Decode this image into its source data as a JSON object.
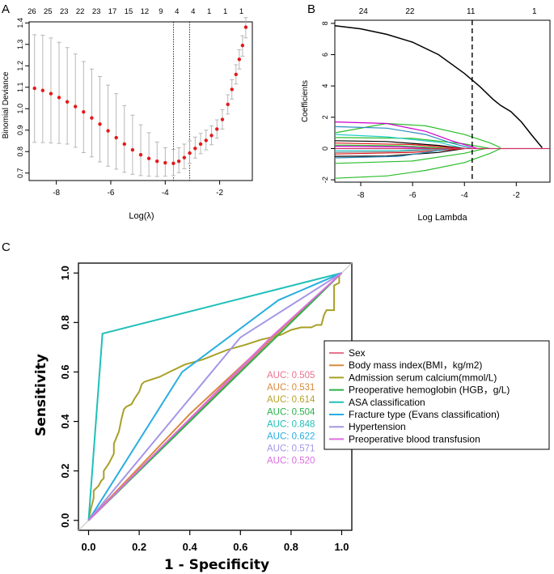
{
  "panel_labels": {
    "a": "A",
    "b": "B",
    "c": "C"
  },
  "chart_data": [
    {
      "id": "A",
      "type": "scatter",
      "title": "",
      "xlabel": "Log(λ)",
      "ylabel": "Binomial Deviance",
      "xlim": [
        -9.0,
        -0.8
      ],
      "ylim": [
        0.665,
        1.405
      ],
      "xticks": [
        "-8",
        "-6",
        "-4",
        "-2"
      ],
      "yticks": [
        "0.7",
        "0.8",
        "0.9",
        "1.0",
        "1.1",
        "1.2",
        "1.3",
        "1.4"
      ],
      "top_axis_labels": [
        "26",
        "25",
        "23",
        "22",
        "23",
        "17",
        "15",
        "12",
        "9",
        "4",
        "4",
        "1",
        "1",
        "1"
      ],
      "vlines": [
        -3.7,
        -3.1
      ],
      "point_color": "#e31a1c",
      "errorbar_color": "#b0b0b0",
      "series": [
        {
          "name": "Binomial Deviance",
          "x": [
            -8.8,
            -8.5,
            -8.2,
            -7.9,
            -7.6,
            -7.3,
            -7.0,
            -6.7,
            -6.4,
            -6.1,
            -5.8,
            -5.5,
            -5.2,
            -4.9,
            -4.6,
            -4.3,
            -4.0,
            -3.7,
            -3.5,
            -3.3,
            -3.1,
            -2.9,
            -2.7,
            -2.5,
            -2.3,
            -2.1,
            -1.9,
            -1.7,
            -1.55,
            -1.4,
            -1.28,
            -1.16,
            -1.04
          ],
          "y": [
            1.095,
            1.085,
            1.07,
            1.052,
            1.032,
            1.01,
            0.985,
            0.957,
            0.928,
            0.897,
            0.865,
            0.835,
            0.808,
            0.785,
            0.768,
            0.755,
            0.748,
            0.745,
            0.755,
            0.772,
            0.793,
            0.815,
            0.835,
            0.852,
            0.875,
            0.905,
            0.95,
            1.02,
            1.09,
            1.16,
            1.23,
            1.295,
            1.38
          ],
          "lower": [
            0.843,
            0.842,
            0.84,
            0.838,
            0.835,
            0.82,
            0.795,
            0.775,
            0.752,
            0.732,
            0.718,
            0.703,
            0.694,
            0.688,
            0.685,
            0.684,
            0.685,
            0.688,
            0.702,
            0.72,
            0.745,
            0.77,
            0.79,
            0.808,
            0.832,
            0.862,
            0.905,
            0.975,
            1.045,
            1.115,
            1.185,
            1.245,
            1.33
          ],
          "upper": [
            1.345,
            1.343,
            1.33,
            1.31,
            1.285,
            1.255,
            1.22,
            1.185,
            1.15,
            1.11,
            1.07,
            1.015,
            0.97,
            0.925,
            0.888,
            0.845,
            0.818,
            0.81,
            0.818,
            0.835,
            0.85,
            0.868,
            0.885,
            0.9,
            0.92,
            0.948,
            0.995,
            1.065,
            1.135,
            1.205,
            1.275,
            1.34,
            1.425
          ]
        }
      ]
    },
    {
      "id": "B",
      "type": "line",
      "title": "",
      "xlabel": "Log Lambda",
      "ylabel": "Coefficients",
      "xlim": [
        -9.0,
        -0.7
      ],
      "ylim": [
        -2.15,
        8.2
      ],
      "xticks": [
        "-8",
        "-6",
        "-4",
        "-2"
      ],
      "yticks": [
        "-2",
        "0",
        "2",
        "4",
        "6",
        "8"
      ],
      "top_axis_labels": [
        "24",
        "22",
        "11",
        "1"
      ],
      "vline": -3.7,
      "series": [
        {
          "name": "black-1",
          "color": "#000000",
          "x": [
            -9.0,
            -8.0,
            -7.0,
            -6.0,
            -5.0,
            -4.0,
            -3.4,
            -2.9,
            -2.6,
            -2.2,
            -1.8,
            -1.4,
            -1.0
          ],
          "y": [
            7.85,
            7.65,
            7.3,
            6.8,
            6.0,
            4.8,
            3.95,
            3.15,
            2.75,
            2.35,
            1.7,
            0.85,
            0.05
          ]
        },
        {
          "name": "green-up",
          "color": "#2bbd2b",
          "x": [
            -9.0,
            -7.0,
            -5.5,
            -4.0,
            -3.0,
            -2.6
          ],
          "y": [
            1.0,
            1.6,
            1.45,
            0.9,
            0.35,
            0.05
          ]
        },
        {
          "name": "green-down",
          "color": "#2bbd2b",
          "x": [
            -9.0,
            -7.0,
            -5.5,
            -4.0,
            -3.0,
            -2.6
          ],
          "y": [
            -1.9,
            -1.75,
            -1.4,
            -0.9,
            -0.3,
            0.0
          ]
        },
        {
          "name": "green-up2",
          "color": "#2bbd2b",
          "x": [
            -9.0,
            -6.0,
            -4.0,
            -3.0
          ],
          "y": [
            0.7,
            0.65,
            0.3,
            0.0
          ]
        },
        {
          "name": "green-low2",
          "color": "#2bbd2b",
          "x": [
            -9.0,
            -6.0,
            -4.0,
            -3.2
          ],
          "y": [
            -0.95,
            -0.8,
            -0.3,
            0.0
          ]
        },
        {
          "name": "magenta-1",
          "color": "#cc00cc",
          "x": [
            -9.0,
            -7.0,
            -5.5,
            -4.5,
            -3.7,
            -3.5
          ],
          "y": [
            1.7,
            1.6,
            1.1,
            0.5,
            0.1,
            0.0
          ]
        },
        {
          "name": "blue-1",
          "color": "#2b8cbe",
          "x": [
            -9.0,
            -7.0,
            -5.5,
            -4.5,
            -3.7
          ],
          "y": [
            1.4,
            1.3,
            0.9,
            0.35,
            0.0
          ]
        },
        {
          "name": "cyan-1",
          "color": "#22cccc",
          "x": [
            -9.0,
            -7.0,
            -5.0,
            -4.0
          ],
          "y": [
            0.9,
            0.75,
            0.4,
            0.0
          ]
        },
        {
          "name": "black-2",
          "color": "#000000",
          "x": [
            -9.0,
            -7.0,
            -5.0,
            -4.0
          ],
          "y": [
            0.5,
            0.45,
            0.2,
            0.0
          ]
        },
        {
          "name": "black-3",
          "color": "#000000",
          "x": [
            -9.0,
            -7.0,
            -5.0,
            -4.0
          ],
          "y": [
            -0.5,
            -0.48,
            -0.25,
            0.0
          ]
        },
        {
          "name": "red-1",
          "color": "#e31a1c",
          "x": [
            -9.0,
            -6.0,
            -4.0
          ],
          "y": [
            0.35,
            0.25,
            0.0
          ]
        },
        {
          "name": "red-2",
          "color": "#e31a1c",
          "x": [
            -9.0,
            -6.0,
            -4.0
          ],
          "y": [
            -0.35,
            -0.25,
            0.0
          ]
        },
        {
          "name": "blue-2",
          "color": "#2b8cbe",
          "x": [
            -9.0,
            -6.5,
            -4.5
          ],
          "y": [
            -0.6,
            -0.5,
            0.0
          ]
        },
        {
          "name": "cyan-2",
          "color": "#22cccc",
          "x": [
            -9.0,
            -6.5,
            -4.5
          ],
          "y": [
            -0.15,
            -0.12,
            0.0
          ]
        },
        {
          "name": "magenta-2",
          "color": "#cc00cc",
          "x": [
            -9.0,
            -6.5,
            -4.5
          ],
          "y": [
            0.15,
            0.1,
            0.0
          ]
        },
        {
          "name": "grey-1",
          "color": "#808080",
          "x": [
            -9.0,
            -6.5,
            -4.5
          ],
          "y": [
            -0.25,
            -0.2,
            0.0
          ]
        },
        {
          "name": "green-3",
          "color": "#2bbd2b",
          "x": [
            -9.0,
            -6.5,
            -4.5
          ],
          "y": [
            0.22,
            0.18,
            0.0
          ]
        },
        {
          "name": "zero",
          "color": "#cc3366",
          "x": [
            -9.0,
            -0.7
          ],
          "y": [
            0.0,
            0.0
          ]
        }
      ]
    },
    {
      "id": "C",
      "type": "line",
      "title": "",
      "xlabel": "1 - Specificity",
      "ylabel": "Sensitivity",
      "xlim": [
        -0.04,
        1.04
      ],
      "ylim": [
        -0.04,
        1.04
      ],
      "xticks": [
        "0.0",
        "0.2",
        "0.4",
        "0.6",
        "0.8",
        "1.0"
      ],
      "yticks": [
        "0.0",
        "0.2",
        "0.4",
        "0.6",
        "0.8",
        "1.0"
      ],
      "legend_position": "right",
      "auc_labels": [
        "AUC: 0.505",
        "AUC: 0.531",
        "AUC: 0.614",
        "AUC: 0.504",
        "AUC: 0.848",
        "AUC: 0.622",
        "AUC: 0.571",
        "AUC: 0.520"
      ],
      "auc_colors": [
        "#e8738f",
        "#d88a3c",
        "#b5a128",
        "#2bb04a",
        "#1fc0b8",
        "#29aee0",
        "#a596e6",
        "#dc6ee0"
      ],
      "series": [
        {
          "name": "Sex",
          "color": "#e8738f",
          "x": [
            0.0,
            0.77,
            1.0
          ],
          "y": [
            0.0,
            0.78,
            1.0
          ]
        },
        {
          "name": "Body mass index(BMI，kg/m2)",
          "color": "#d88a3c",
          "x": [
            0.0,
            0.4,
            1.0
          ],
          "y": [
            0.0,
            0.43,
            1.0
          ]
        },
        {
          "name": "Admission serum calcium(mmol/L)",
          "color": "#a8a028",
          "x": [
            0.0,
            0.01,
            0.02,
            0.02,
            0.04,
            0.05,
            0.06,
            0.06,
            0.08,
            0.09,
            0.1,
            0.1,
            0.12,
            0.13,
            0.14,
            0.15,
            0.17,
            0.18,
            0.2,
            0.21,
            0.22,
            0.25,
            0.28,
            0.32,
            0.38,
            0.45,
            0.55,
            0.62,
            0.68,
            0.72,
            0.76,
            0.8,
            0.84,
            0.88,
            0.9,
            0.92,
            0.93,
            0.94,
            0.97,
            0.97,
            0.99,
            0.99,
            1.0
          ],
          "y": [
            0.0,
            0.05,
            0.09,
            0.12,
            0.14,
            0.16,
            0.17,
            0.2,
            0.23,
            0.25,
            0.27,
            0.31,
            0.36,
            0.41,
            0.45,
            0.46,
            0.47,
            0.49,
            0.52,
            0.55,
            0.56,
            0.57,
            0.58,
            0.6,
            0.63,
            0.65,
            0.69,
            0.71,
            0.73,
            0.74,
            0.75,
            0.77,
            0.78,
            0.78,
            0.79,
            0.79,
            0.83,
            0.85,
            0.85,
            0.95,
            0.96,
            0.99,
            1.0
          ]
        },
        {
          "name": "Preoperative hemoglobin (HGB，g/L)",
          "color": "#2bb04a",
          "x": [
            0.0,
            0.8,
            1.0
          ],
          "y": [
            0.0,
            0.8,
            1.0
          ]
        },
        {
          "name": "ASA  classification",
          "color": "#1fc0b8",
          "x": [
            0.0,
            0.055,
            1.0
          ],
          "y": [
            0.0,
            0.755,
            1.0
          ]
        },
        {
          "name": "Fracture type (Evans classification)",
          "color": "#29aee0",
          "x": [
            0.0,
            0.37,
            0.75,
            1.0
          ],
          "y": [
            0.0,
            0.6,
            0.89,
            1.0
          ]
        },
        {
          "name": "Hypertension",
          "color": "#a596e6",
          "x": [
            0.0,
            0.6,
            1.0
          ],
          "y": [
            0.0,
            0.74,
            1.0
          ]
        },
        {
          "name": "Preoperative blood transfusion",
          "color": "#dc6ee0",
          "x": [
            0.0,
            0.72,
            1.0
          ],
          "y": [
            0.0,
            0.74,
            1.0
          ]
        }
      ]
    }
  ]
}
